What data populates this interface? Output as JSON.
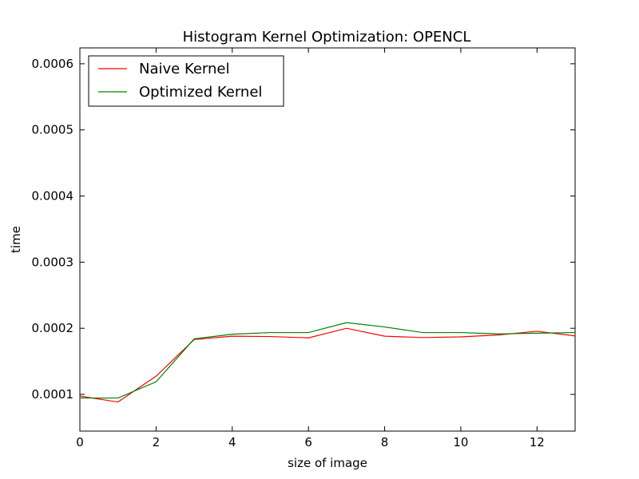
{
  "chart_data": {
    "type": "line",
    "title": "Histogram Kernel Optimization: OPENCL",
    "xlabel": "size of image",
    "ylabel": "time",
    "xlim": [
      0,
      13
    ],
    "ylim": [
      4.45e-05,
      0.000624
    ],
    "x_ticks": [
      {
        "value": 0,
        "label": "0"
      },
      {
        "value": 2,
        "label": "2"
      },
      {
        "value": 4,
        "label": "4"
      },
      {
        "value": 6,
        "label": "6"
      },
      {
        "value": 8,
        "label": "8"
      },
      {
        "value": 10,
        "label": "10"
      },
      {
        "value": 12,
        "label": "12"
      }
    ],
    "y_ticks": [
      {
        "value": 0.0001,
        "label": "0.0001"
      },
      {
        "value": 0.0002,
        "label": "0.0002"
      },
      {
        "value": 0.0003,
        "label": "0.0003"
      },
      {
        "value": 0.0004,
        "label": "0.0004"
      },
      {
        "value": 0.0005,
        "label": "0.0005"
      },
      {
        "value": 0.0006,
        "label": "0.0006"
      }
    ],
    "x": [
      0,
      1,
      2,
      3,
      4,
      5,
      6,
      7,
      8,
      9,
      10,
      11,
      12,
      13
    ],
    "series": [
      {
        "name": "Naive Kernel",
        "color": "#ff0000",
        "values": [
          9.75e-05,
          8.85e-05,
          0.0001275,
          0.000183,
          0.000188,
          0.0001875,
          0.0001855,
          0.0002,
          0.000188,
          0.000186,
          0.000187,
          0.00019,
          0.0001955,
          0.0001885
        ]
      },
      {
        "name": "Optimized Kernel",
        "color": "#008000",
        "values": [
          9.45e-05,
          9.45e-05,
          0.000119,
          0.000184,
          0.000191,
          0.0001935,
          0.0001935,
          0.0002085,
          0.000202,
          0.0001935,
          0.0001935,
          0.0001915,
          0.0001925,
          0.0001935
        ]
      }
    ],
    "legend_position": "top-left",
    "grid": false
  }
}
